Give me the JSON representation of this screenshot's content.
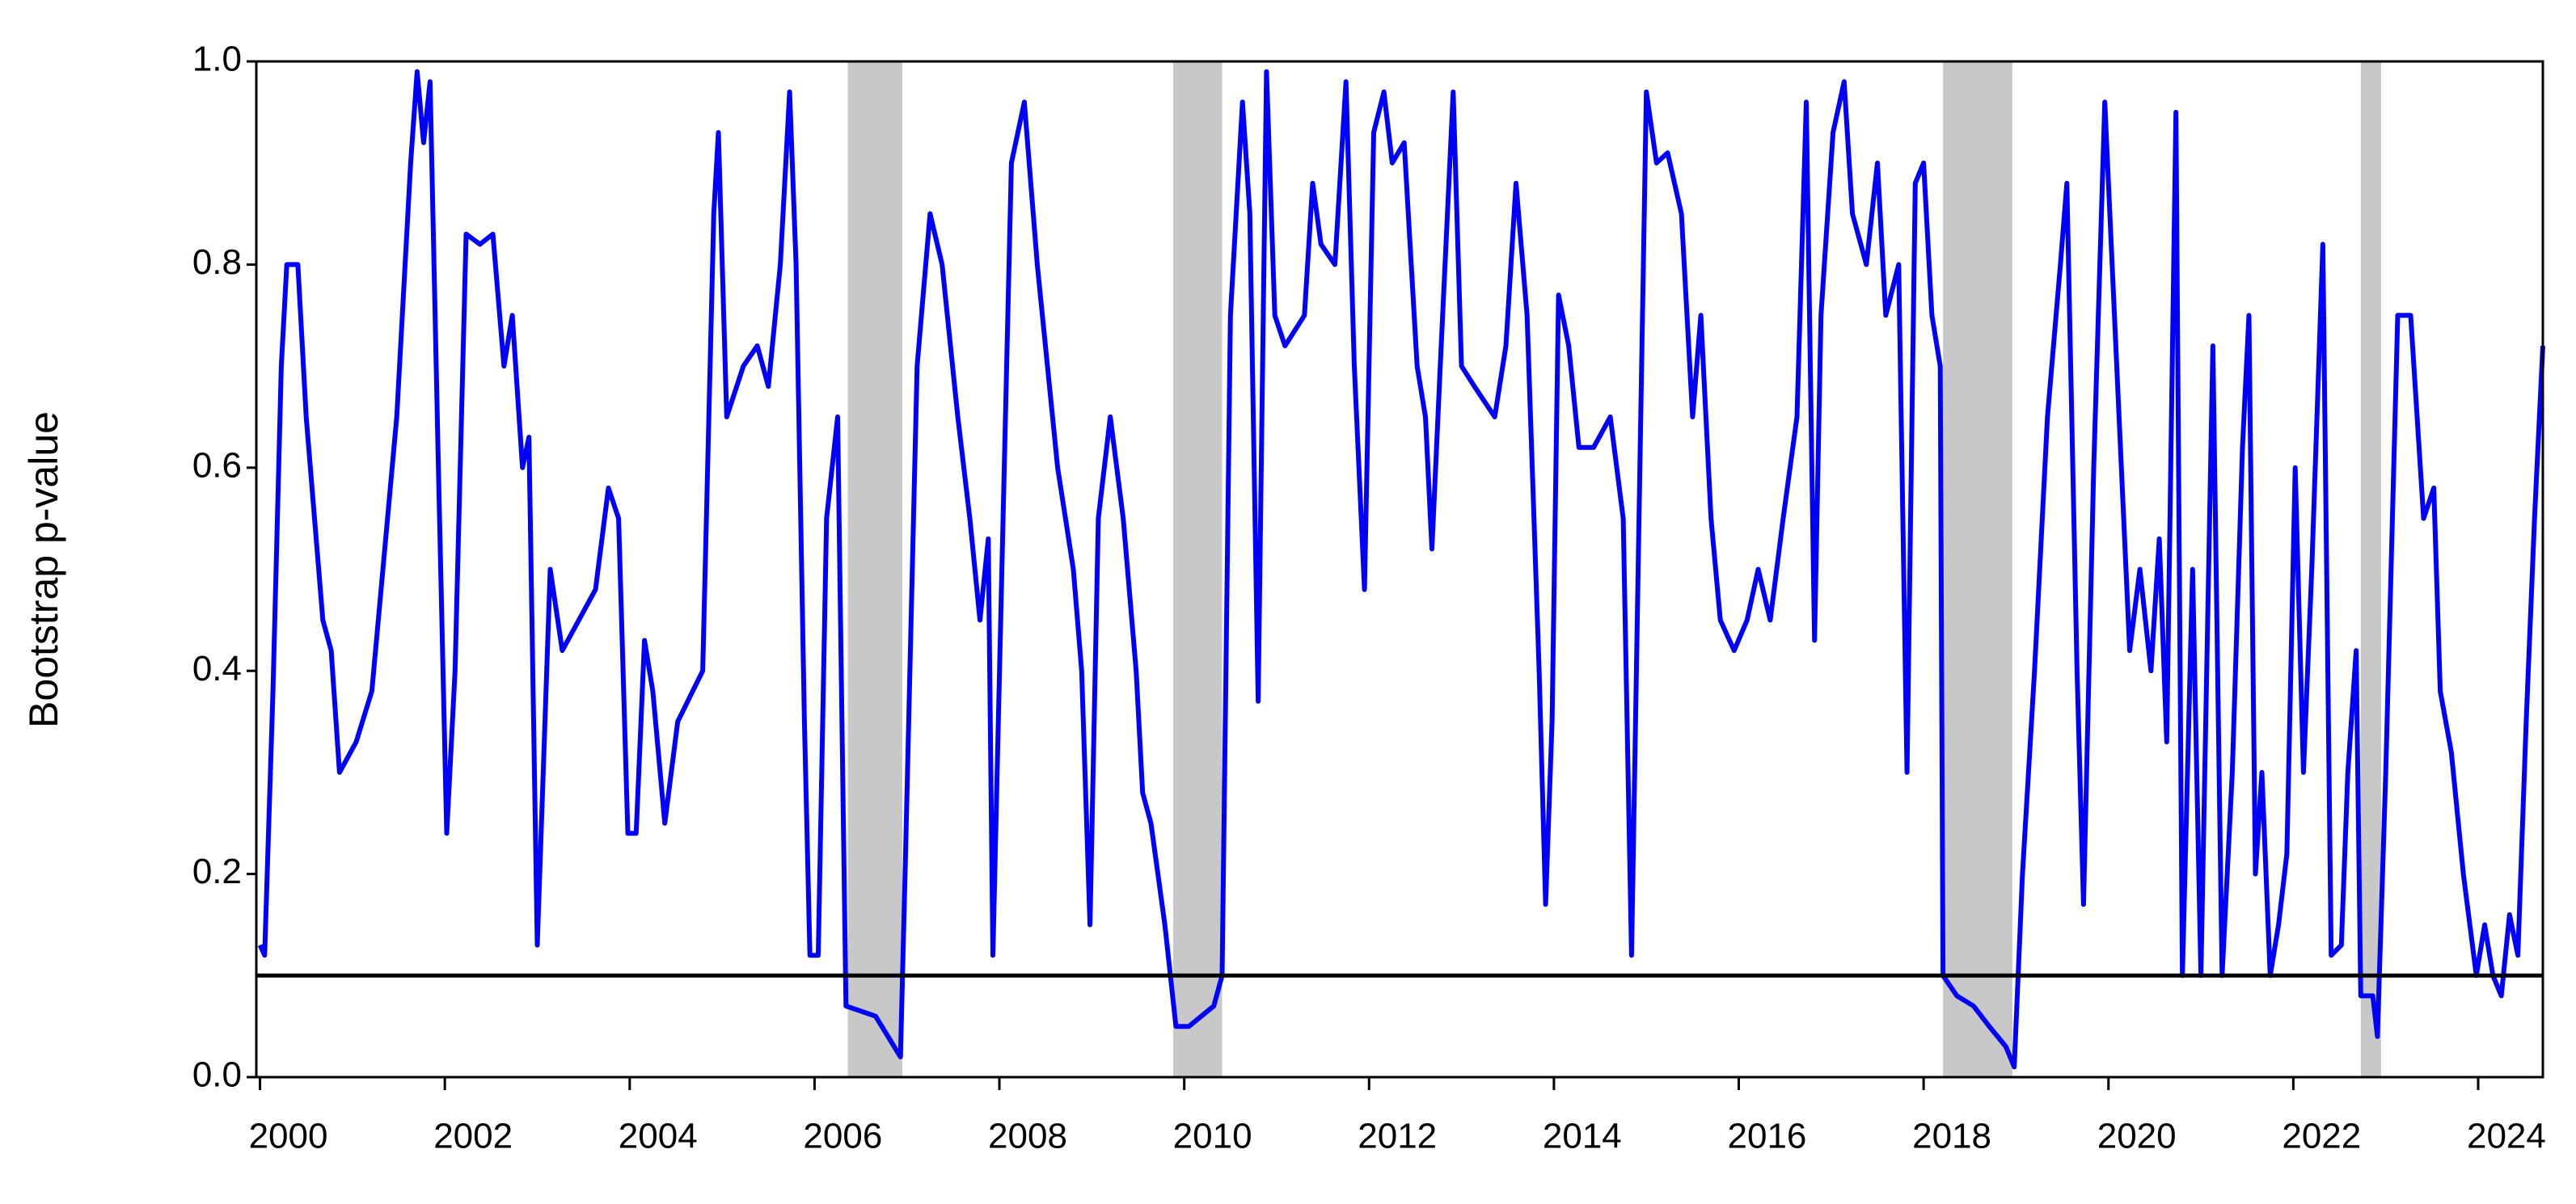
{
  "chart_data": {
    "type": "line",
    "ylabel": "Bootstrap p-value",
    "x": [
      2000.0,
      2000.05,
      2000.14,
      2000.23,
      2000.29,
      2000.41,
      2000.5,
      2000.68,
      2000.77,
      2000.86,
      2001.04,
      2001.21,
      2001.48,
      2001.63,
      2001.7,
      2001.77,
      2001.84,
      2001.93,
      2002.02,
      2002.11,
      2002.23,
      2002.38,
      2002.52,
      2002.64,
      2002.73,
      2002.84,
      2002.91,
      2003.0,
      2003.14,
      2003.27,
      2003.45,
      2003.63,
      2003.77,
      2003.88,
      2003.98,
      2004.07,
      2004.16,
      2004.25,
      2004.38,
      2004.52,
      2004.79,
      2004.91,
      2004.96,
      2005.05,
      2005.23,
      2005.38,
      2005.5,
      2005.63,
      2005.73,
      2005.8,
      2005.89,
      2005.95,
      2006.04,
      2006.13,
      2006.25,
      2006.34,
      2006.66,
      2006.93,
      2006.98,
      2007.11,
      2007.25,
      2007.38,
      2007.55,
      2007.68,
      2007.79,
      2007.88,
      2007.93,
      2008.04,
      2008.13,
      2008.27,
      2008.41,
      2008.63,
      2008.8,
      2008.89,
      2008.98,
      2009.07,
      2009.2,
      2009.34,
      2009.48,
      2009.55,
      2009.64,
      2009.79,
      2009.91,
      2010.05,
      2010.32,
      2010.41,
      2010.5,
      2010.63,
      2010.71,
      2010.8,
      2010.89,
      2010.98,
      2011.09,
      2011.3,
      2011.39,
      2011.48,
      2011.63,
      2011.75,
      2011.84,
      2011.95,
      2012.05,
      2012.16,
      2012.25,
      2012.38,
      2012.52,
      2012.61,
      2012.68,
      2012.77,
      2012.91,
      2013.0,
      2013.14,
      2013.36,
      2013.48,
      2013.59,
      2013.71,
      2013.84,
      2013.91,
      2013.98,
      2014.05,
      2014.16,
      2014.27,
      2014.43,
      2014.61,
      2014.75,
      2014.84,
      2014.93,
      2015.0,
      2015.11,
      2015.23,
      2015.38,
      2015.5,
      2015.59,
      2015.7,
      2015.8,
      2015.95,
      2016.09,
      2016.21,
      2016.34,
      2016.48,
      2016.63,
      2016.73,
      2016.82,
      2016.89,
      2017.02,
      2017.14,
      2017.23,
      2017.38,
      2017.5,
      2017.59,
      2017.73,
      2017.82,
      2017.91,
      2018.0,
      2018.09,
      2018.18,
      2018.21,
      2018.36,
      2018.54,
      2018.71,
      2018.89,
      2018.98,
      2019.07,
      2019.2,
      2019.34,
      2019.48,
      2019.55,
      2019.66,
      2019.73,
      2019.84,
      2019.96,
      2020.09,
      2020.23,
      2020.34,
      2020.46,
      2020.55,
      2020.63,
      2020.73,
      2020.8,
      2020.91,
      2021.0,
      2021.13,
      2021.23,
      2021.34,
      2021.45,
      2021.52,
      2021.59,
      2021.66,
      2021.75,
      2021.84,
      2021.93,
      2022.02,
      2022.11,
      2022.2,
      2022.32,
      2022.41,
      2022.52,
      2022.59,
      2022.68,
      2022.73,
      2022.86,
      2022.91,
      2023.0,
      2023.13,
      2023.27,
      2023.41,
      2023.52,
      2023.59,
      2023.71,
      2023.84,
      2023.98,
      2024.07,
      2024.16,
      2024.25,
      2024.34,
      2024.43,
      2024.52,
      2024.61,
      2024.7
    ],
    "values": [
      0.13,
      0.12,
      0.38,
      0.7,
      0.8,
      0.8,
      0.65,
      0.45,
      0.42,
      0.3,
      0.33,
      0.38,
      0.65,
      0.9,
      0.99,
      0.92,
      0.98,
      0.6,
      0.24,
      0.4,
      0.83,
      0.82,
      0.83,
      0.7,
      0.75,
      0.6,
      0.63,
      0.13,
      0.5,
      0.42,
      0.45,
      0.48,
      0.58,
      0.55,
      0.24,
      0.24,
      0.43,
      0.38,
      0.25,
      0.35,
      0.4,
      0.85,
      0.93,
      0.65,
      0.7,
      0.72,
      0.68,
      0.8,
      0.97,
      0.8,
      0.35,
      0.12,
      0.12,
      0.55,
      0.65,
      0.07,
      0.06,
      0.02,
      0.2,
      0.7,
      0.85,
      0.8,
      0.65,
      0.55,
      0.45,
      0.53,
      0.12,
      0.55,
      0.9,
      0.96,
      0.8,
      0.6,
      0.5,
      0.4,
      0.15,
      0.55,
      0.65,
      0.55,
      0.4,
      0.28,
      0.25,
      0.15,
      0.05,
      0.05,
      0.07,
      0.1,
      0.75,
      0.96,
      0.85,
      0.37,
      0.99,
      0.75,
      0.72,
      0.75,
      0.88,
      0.82,
      0.8,
      0.98,
      0.7,
      0.48,
      0.93,
      0.97,
      0.9,
      0.92,
      0.7,
      0.65,
      0.52,
      0.7,
      0.97,
      0.7,
      0.68,
      0.65,
      0.72,
      0.88,
      0.75,
      0.4,
      0.17,
      0.35,
      0.77,
      0.72,
      0.62,
      0.62,
      0.65,
      0.55,
      0.12,
      0.6,
      0.97,
      0.9,
      0.91,
      0.85,
      0.65,
      0.75,
      0.55,
      0.45,
      0.42,
      0.45,
      0.5,
      0.45,
      0.55,
      0.65,
      0.96,
      0.43,
      0.75,
      0.93,
      0.98,
      0.85,
      0.8,
      0.9,
      0.75,
      0.8,
      0.3,
      0.88,
      0.9,
      0.75,
      0.7,
      0.1,
      0.08,
      0.07,
      0.05,
      0.03,
      0.01,
      0.2,
      0.4,
      0.65,
      0.8,
      0.88,
      0.4,
      0.17,
      0.6,
      0.96,
      0.7,
      0.42,
      0.5,
      0.4,
      0.53,
      0.33,
      0.95,
      0.1,
      0.5,
      0.1,
      0.72,
      0.1,
      0.3,
      0.62,
      0.75,
      0.2,
      0.3,
      0.1,
      0.15,
      0.22,
      0.6,
      0.3,
      0.5,
      0.82,
      0.12,
      0.13,
      0.3,
      0.42,
      0.08,
      0.08,
      0.04,
      0.3,
      0.75,
      0.75,
      0.55,
      0.58,
      0.38,
      0.32,
      0.2,
      0.1,
      0.15,
      0.1,
      0.08,
      0.16,
      0.12,
      0.35,
      0.55,
      0.72
    ],
    "color": "#0000ff",
    "shaded_regions": [
      [
        2006.36,
        2006.95
      ],
      [
        2009.88,
        2010.41
      ],
      [
        2018.21,
        2018.96
      ],
      [
        2022.73,
        2022.95
      ]
    ],
    "shade_color": "#c8c8c8",
    "reference_line": 0.1,
    "xlim": [
      1999.96,
      2024.7
    ],
    "xticks": [
      2000,
      2002,
      2004,
      2006,
      2008,
      2010,
      2012,
      2014,
      2016,
      2018,
      2020,
      2022,
      2024
    ],
    "ylim": [
      0,
      1
    ],
    "yticks": [
      {
        "value": 0,
        "label": "0.0"
      },
      0.2,
      0.4,
      0.6,
      0.8,
      {
        "value": 1,
        "label": "1.0"
      }
    ]
  }
}
